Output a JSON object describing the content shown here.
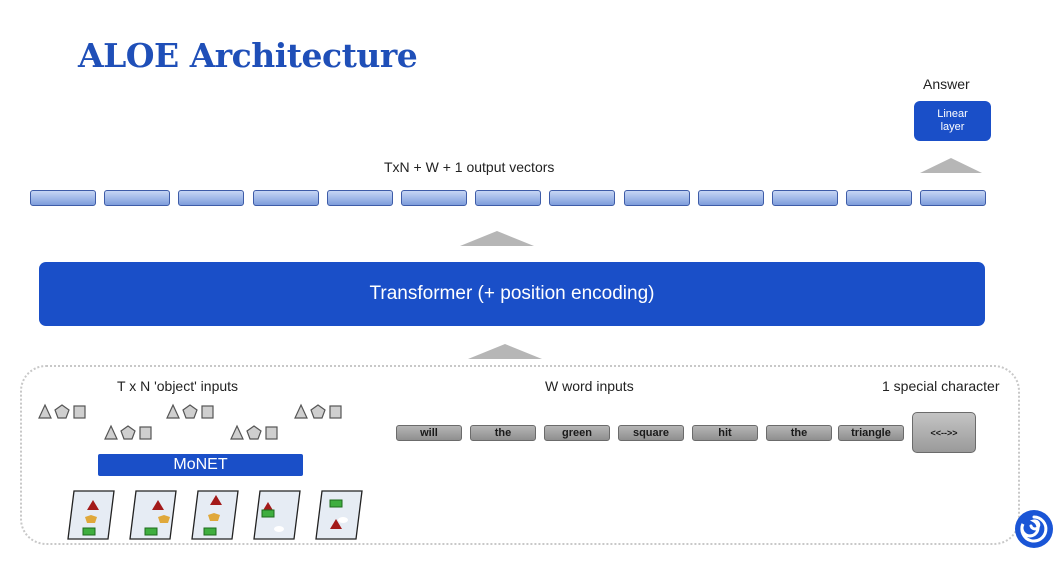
{
  "slide": {
    "title": "ALOE Architecture"
  },
  "answer": {
    "label": "Answer",
    "linear_layer_line1": "Linear",
    "linear_layer_line2": "layer"
  },
  "outputs": {
    "label": "TxN + W + 1 output vectors",
    "vector_count": 13
  },
  "transformer": {
    "label": "Transformer (+ position encoding)"
  },
  "inputs": {
    "object_label": "T x N 'object' inputs",
    "word_label": "W word inputs",
    "special_label": "1 special character",
    "words": [
      "will",
      "the",
      "green",
      "square",
      "hit",
      "the",
      "triangle"
    ],
    "special_token": "<<-->>",
    "monet_label": "MoNET"
  },
  "colors": {
    "accent": "#1a4fc8",
    "title": "#1f4fb8",
    "vector_fill": "#a9bfea",
    "token_gray": "#9e9e9e"
  },
  "icons": {
    "object_shapes": "triangle-pentagon-square-icon",
    "logo": "swirl-logo-icon"
  }
}
